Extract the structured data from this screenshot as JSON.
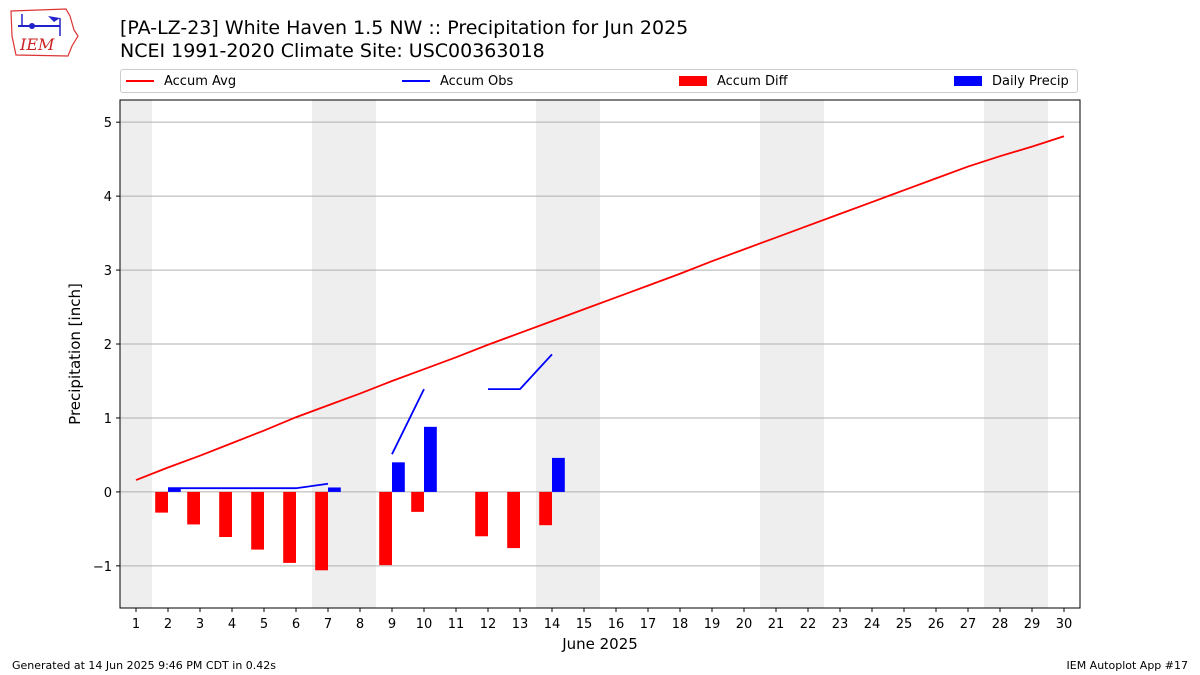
{
  "header": {
    "title_line1": "[PA-LZ-23] White Haven 1.5 NW :: Precipitation for Jun 2025",
    "title_line2": "NCEI 1991-2020 Climate Site: USC00363018",
    "logo_text": "IEM",
    "logo_icon": "iowa-weather-station-logo"
  },
  "legend": {
    "items": [
      {
        "label": "Accum Avg",
        "kind": "line",
        "color": "#ff0000"
      },
      {
        "label": "Accum Obs",
        "kind": "line",
        "color": "#0000ff"
      },
      {
        "label": "Accum Diff",
        "kind": "patch",
        "color": "#ff0000"
      },
      {
        "label": "Daily Precip",
        "kind": "patch",
        "color": "#0000ff"
      }
    ]
  },
  "footer": {
    "generated": "Generated at 14 Jun 2025 9:46 PM CDT in 0.42s",
    "app": "IEM Autoplot App #17"
  },
  "colors": {
    "avg": "#ff0000",
    "obs": "#0000ff",
    "diff": "#ff0000",
    "daily": "#0000ff",
    "weekend": "#eeeeee",
    "grid": "#b0b0b0"
  },
  "chart_data": {
    "type": "line",
    "title": "[PA-LZ-23] White Haven 1.5 NW :: Precipitation for Jun 2025",
    "xlabel": "June 2025",
    "ylabel": "Precipitation [inch]",
    "xlim": [
      0.5,
      30.5
    ],
    "ylim": [
      -1.57,
      5.3
    ],
    "yticks": [
      -1,
      0,
      1,
      2,
      3,
      4,
      5
    ],
    "ytick_labels": [
      "−1",
      "0",
      "1",
      "2",
      "3",
      "4",
      "5"
    ],
    "xticks": [
      1,
      2,
      3,
      4,
      5,
      6,
      7,
      8,
      9,
      10,
      11,
      12,
      13,
      14,
      15,
      16,
      17,
      18,
      19,
      20,
      21,
      22,
      23,
      24,
      25,
      26,
      27,
      28,
      29,
      30
    ],
    "grid": "horizontal",
    "weekend_days": [
      1,
      7,
      8,
      14,
      15,
      21,
      22,
      28,
      29
    ],
    "accum_avg": {
      "x": [
        1,
        2,
        3,
        4,
        5,
        6,
        7,
        8,
        9,
        10,
        11,
        12,
        13,
        14,
        15,
        16,
        17,
        18,
        19,
        20,
        21,
        22,
        23,
        24,
        25,
        26,
        27,
        28,
        29,
        30
      ],
      "y": [
        0.16,
        0.33,
        0.49,
        0.66,
        0.83,
        1.01,
        1.17,
        1.33,
        1.5,
        1.66,
        1.82,
        1.99,
        2.15,
        2.31,
        2.47,
        2.63,
        2.79,
        2.95,
        3.12,
        3.28,
        3.44,
        3.6,
        3.76,
        3.92,
        4.08,
        4.24,
        4.4,
        4.54,
        4.67,
        4.81
      ]
    },
    "accum_obs": {
      "x": [
        2,
        3,
        4,
        5,
        6,
        7,
        8,
        9,
        10,
        11,
        12,
        13,
        14
      ],
      "y": [
        0.05,
        0.05,
        0.05,
        0.05,
        0.05,
        0.11,
        null,
        0.51,
        1.39,
        null,
        1.39,
        1.39,
        1.86
      ]
    },
    "accum_diff": {
      "x": [
        1,
        2,
        3,
        4,
        5,
        6,
        7,
        8,
        9,
        10,
        11,
        12,
        13,
        14
      ],
      "y": [
        0,
        -0.28,
        -0.44,
        -0.61,
        -0.78,
        -0.96,
        -1.06,
        0,
        -0.99,
        -0.27,
        0,
        -0.6,
        -0.76,
        -0.45
      ]
    },
    "daily_precip": {
      "x": [
        1,
        2,
        3,
        4,
        5,
        6,
        7,
        8,
        9,
        10,
        11,
        12,
        13,
        14
      ],
      "y": [
        0,
        0.04,
        0,
        0,
        0,
        0,
        0.06,
        0,
        0.4,
        0.88,
        0,
        0,
        0,
        0.46
      ]
    }
  }
}
